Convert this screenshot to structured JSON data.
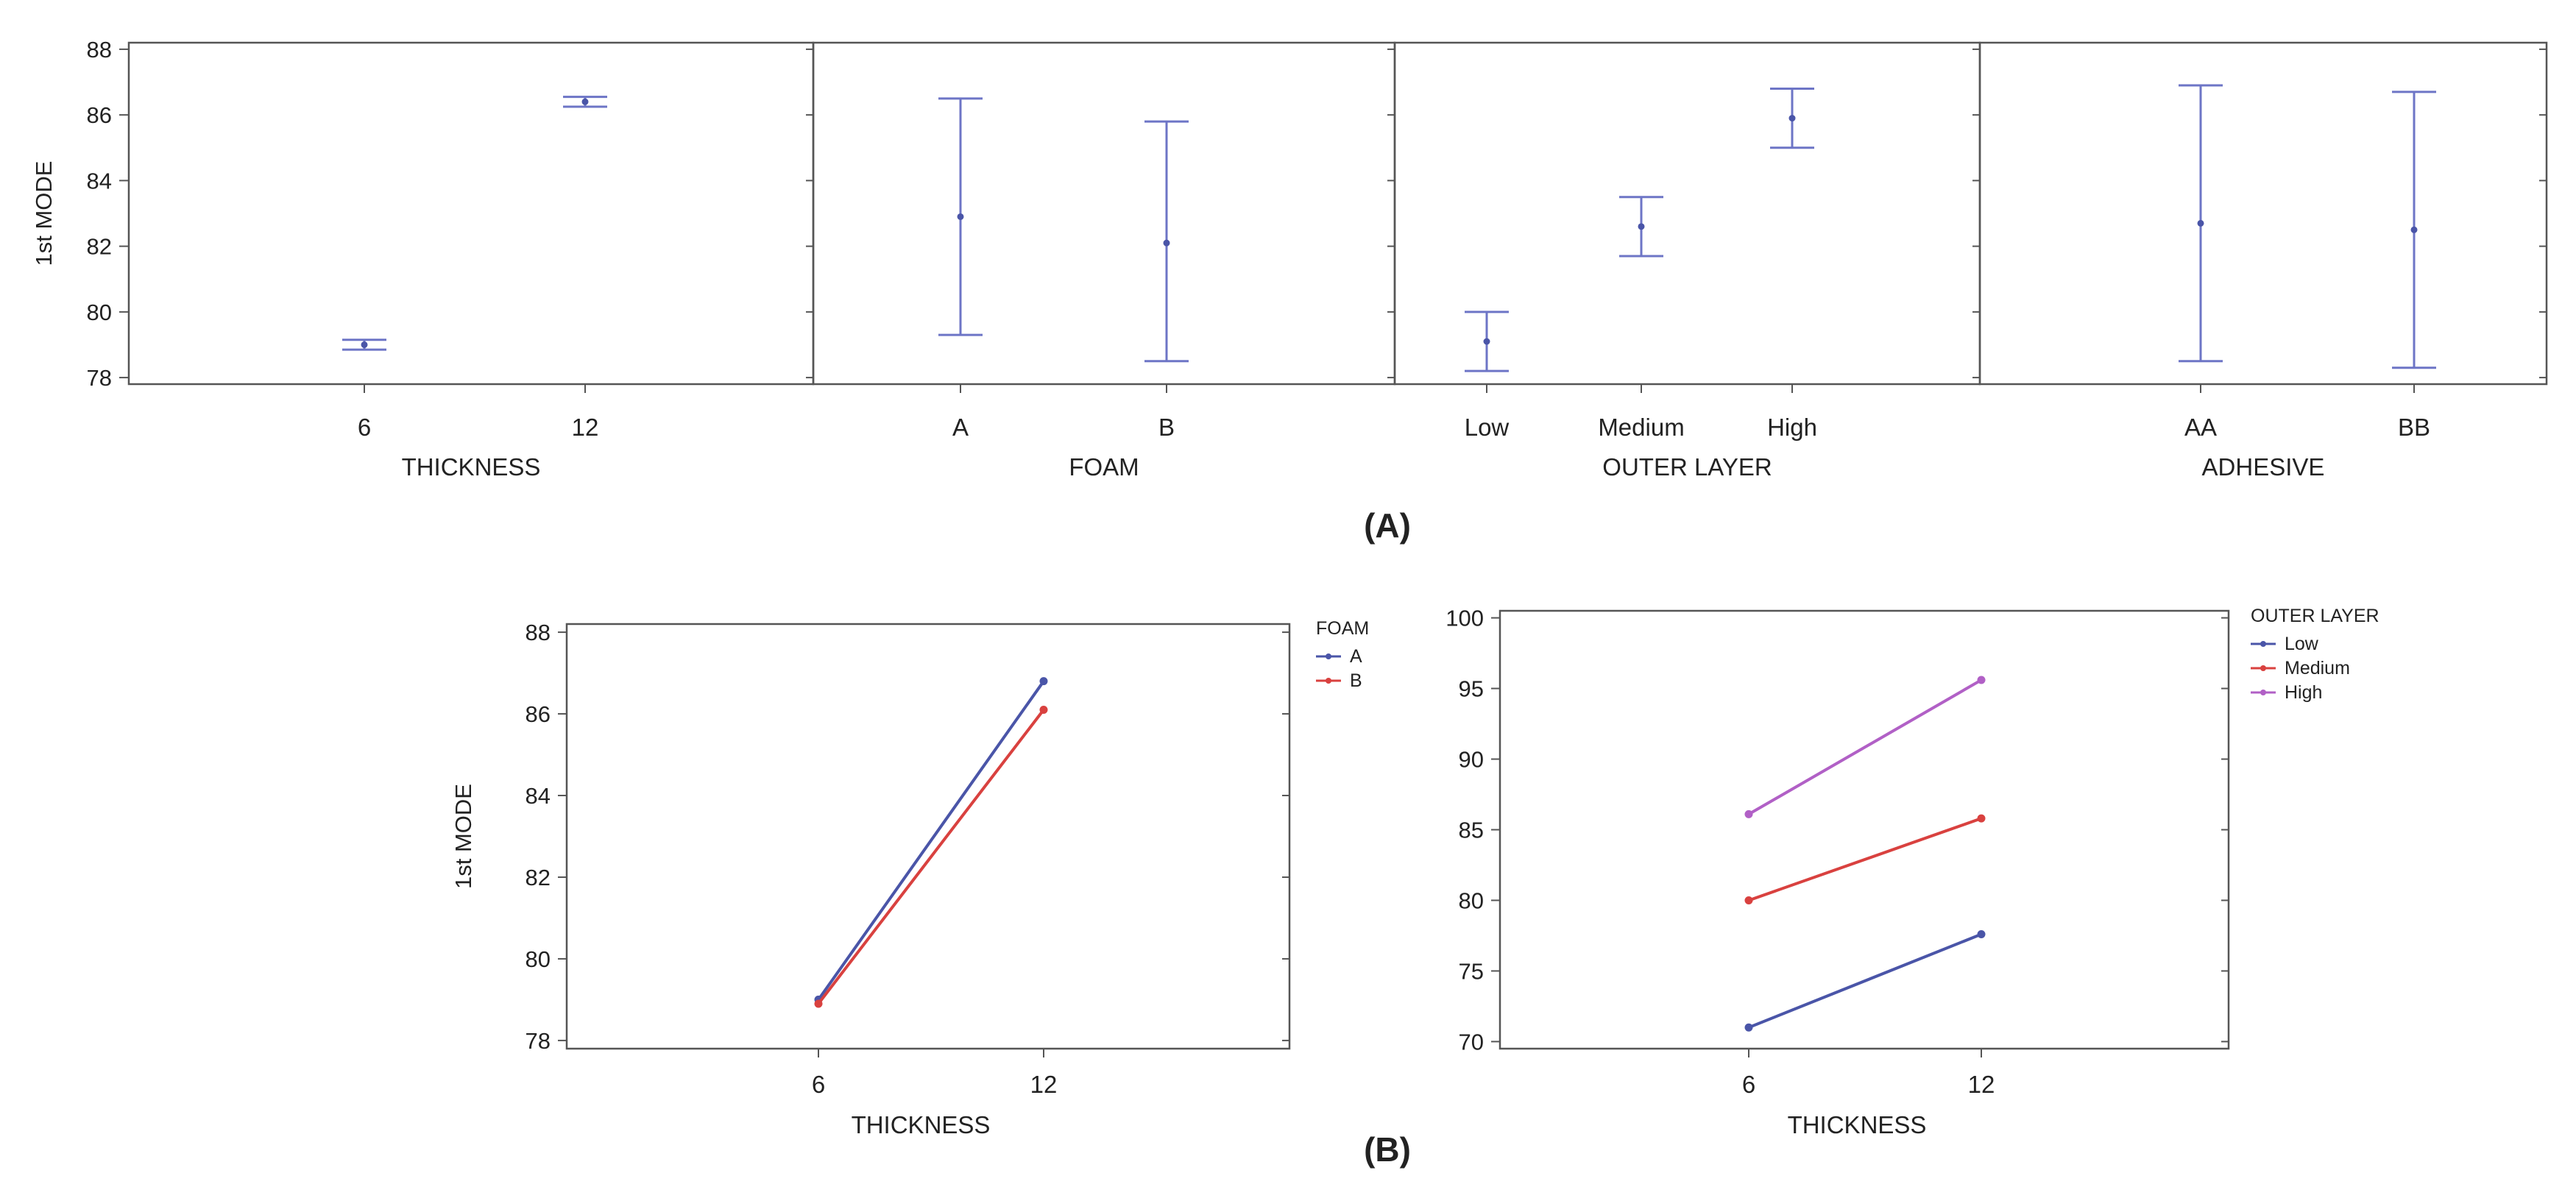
{
  "figure": {
    "label_a": "(A)",
    "label_b": "(B)"
  },
  "colors": {
    "series_blue": "#4a55a8",
    "series_red": "#d9413f",
    "series_purple": "#b160c6",
    "errorbar": "#6d75c6",
    "axis": "#555555",
    "text": "#222222"
  },
  "chart_data": [
    {
      "type": "errorbar",
      "panel": "A",
      "ylabel": "1st MODE",
      "ylim": [
        77.8,
        88.2
      ],
      "yticks": [
        78,
        80,
        82,
        84,
        86,
        88
      ],
      "factors": [
        {
          "name": "THICKNESS",
          "categories": [
            "6",
            "12"
          ],
          "means": [
            79.0,
            86.4
          ],
          "lower": [
            78.85,
            86.25
          ],
          "upper": [
            79.15,
            86.55
          ]
        },
        {
          "name": "FOAM",
          "categories": [
            "A",
            "B"
          ],
          "means": [
            82.9,
            82.1
          ],
          "lower": [
            79.3,
            78.5
          ],
          "upper": [
            86.5,
            85.8
          ]
        },
        {
          "name": "OUTER LAYER",
          "categories": [
            "Low",
            "Medium",
            "High"
          ],
          "means": [
            79.1,
            82.6,
            85.9
          ],
          "lower": [
            78.2,
            81.7,
            85.0
          ],
          "upper": [
            80.0,
            83.5,
            86.8
          ]
        },
        {
          "name": "ADHESIVE",
          "categories": [
            "AA",
            "BB"
          ],
          "means": [
            82.7,
            82.5
          ],
          "lower": [
            78.5,
            78.3
          ],
          "upper": [
            86.9,
            86.7
          ]
        }
      ]
    },
    {
      "type": "line",
      "panel": "B-left",
      "xlabel": "THICKNESS",
      "ylabel": "1st MODE",
      "categories": [
        "6",
        "12"
      ],
      "ylim": [
        77.8,
        88.2
      ],
      "yticks": [
        78,
        80,
        82,
        84,
        86,
        88
      ],
      "legend_title": "FOAM",
      "series": [
        {
          "name": "A",
          "values": [
            79.0,
            86.8
          ],
          "color": "#4a55a8"
        },
        {
          "name": "B",
          "values": [
            78.9,
            86.1
          ],
          "color": "#d9413f"
        }
      ]
    },
    {
      "type": "line",
      "panel": "B-right",
      "xlabel": "THICKNESS",
      "ylabel": "",
      "categories": [
        "6",
        "12"
      ],
      "ylim": [
        69.5,
        100.5
      ],
      "yticks": [
        70,
        75,
        80,
        85,
        90,
        95,
        100
      ],
      "legend_title": "OUTER LAYER",
      "series": [
        {
          "name": "Low",
          "values": [
            71.0,
            77.6
          ],
          "color": "#4a55a8"
        },
        {
          "name": "Medium",
          "values": [
            80.0,
            85.8
          ],
          "color": "#d9413f"
        },
        {
          "name": "High",
          "values": [
            86.1,
            95.6
          ],
          "color": "#b160c6"
        }
      ]
    }
  ]
}
